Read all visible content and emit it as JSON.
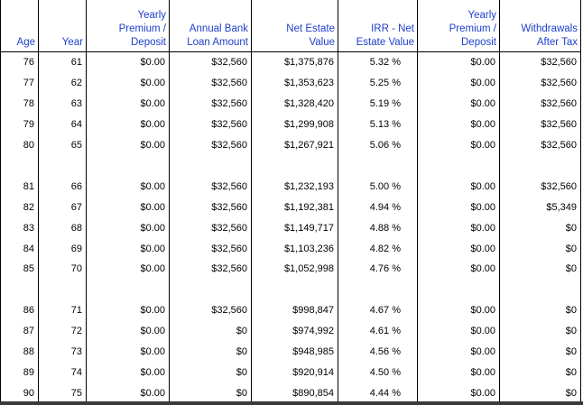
{
  "headers": [
    {
      "lines": [
        "Age"
      ]
    },
    {
      "lines": [
        "Year"
      ]
    },
    {
      "lines": [
        "Yearly",
        "Premium /",
        "Deposit"
      ]
    },
    {
      "lines": [
        "Annual Bank",
        "Loan Amount"
      ]
    },
    {
      "lines": [
        "Net Estate",
        "Value"
      ]
    },
    {
      "lines": [
        "IRR - Net",
        "Estate Value"
      ]
    },
    {
      "lines": [
        "Yearly",
        "Premium /",
        "Deposit"
      ]
    },
    {
      "lines": [
        "Withdrawals",
        "After Tax"
      ]
    }
  ],
  "groups": [
    [
      [
        "76",
        "61",
        "$0.00",
        "$32,560",
        "$1,375,876",
        "5.32 %",
        "$0.00",
        "$32,560"
      ],
      [
        "77",
        "62",
        "$0.00",
        "$32,560",
        "$1,353,623",
        "5.25 %",
        "$0.00",
        "$32,560"
      ],
      [
        "78",
        "63",
        "$0.00",
        "$32,560",
        "$1,328,420",
        "5.19 %",
        "$0.00",
        "$32,560"
      ],
      [
        "79",
        "64",
        "$0.00",
        "$32,560",
        "$1,299,908",
        "5.13 %",
        "$0.00",
        "$32,560"
      ],
      [
        "80",
        "65",
        "$0.00",
        "$32,560",
        "$1,267,921",
        "5.06 %",
        "$0.00",
        "$32,560"
      ]
    ],
    [
      [
        "81",
        "66",
        "$0.00",
        "$32,560",
        "$1,232,193",
        "5.00 %",
        "$0.00",
        "$32,560"
      ],
      [
        "82",
        "67",
        "$0.00",
        "$32,560",
        "$1,192,381",
        "4.94 %",
        "$0.00",
        "$5,349"
      ],
      [
        "83",
        "68",
        "$0.00",
        "$32,560",
        "$1,149,717",
        "4.88 %",
        "$0.00",
        "$0"
      ],
      [
        "84",
        "69",
        "$0.00",
        "$32,560",
        "$1,103,236",
        "4.82 %",
        "$0.00",
        "$0"
      ],
      [
        "85",
        "70",
        "$0.00",
        "$32,560",
        "$1,052,998",
        "4.76 %",
        "$0.00",
        "$0"
      ]
    ],
    [
      [
        "86",
        "71",
        "$0.00",
        "$32,560",
        "$998,847",
        "4.67 %",
        "$0.00",
        "$0"
      ],
      [
        "87",
        "72",
        "$0.00",
        "$0",
        "$974,992",
        "4.61 %",
        "$0.00",
        "$0"
      ],
      [
        "88",
        "73",
        "$0.00",
        "$0",
        "$948,985",
        "4.56 %",
        "$0.00",
        "$0"
      ],
      [
        "89",
        "74",
        "$0.00",
        "$0",
        "$920,914",
        "4.50 %",
        "$0.00",
        "$0"
      ],
      [
        "90",
        "75",
        "$0.00",
        "$0",
        "$890,854",
        "4.44 %",
        "$0.00",
        "$0"
      ]
    ]
  ]
}
